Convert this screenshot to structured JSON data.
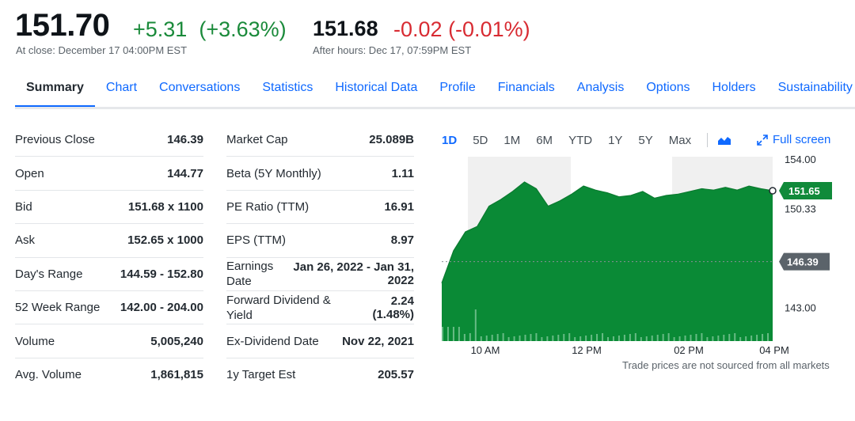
{
  "quote": {
    "price": "151.70",
    "change": "+5.31",
    "change_pct": "(+3.63%)",
    "close_note": "At close: December 17 04:00PM EST",
    "after_hours_price": "151.68",
    "after_hours_change": "-0.02",
    "after_hours_change_pct": "(-0.01%)",
    "after_hours_note": "After hours: Dec 17, 07:59PM EST"
  },
  "tabs": [
    {
      "label": "Summary",
      "active": true
    },
    {
      "label": "Chart"
    },
    {
      "label": "Conversations"
    },
    {
      "label": "Statistics"
    },
    {
      "label": "Historical Data"
    },
    {
      "label": "Profile"
    },
    {
      "label": "Financials"
    },
    {
      "label": "Analysis"
    },
    {
      "label": "Options"
    },
    {
      "label": "Holders"
    },
    {
      "label": "Sustainability"
    }
  ],
  "stats_left": [
    {
      "label": "Previous Close",
      "value": "146.39"
    },
    {
      "label": "Open",
      "value": "144.77"
    },
    {
      "label": "Bid",
      "value": "151.68 x 1100"
    },
    {
      "label": "Ask",
      "value": "152.65 x 1000"
    },
    {
      "label": "Day's Range",
      "value": "144.59 - 152.80"
    },
    {
      "label": "52 Week Range",
      "value": "142.00 - 204.00"
    },
    {
      "label": "Volume",
      "value": "5,005,240"
    },
    {
      "label": "Avg. Volume",
      "value": "1,861,815"
    }
  ],
  "stats_right": [
    {
      "label": "Market Cap",
      "value": "25.089B"
    },
    {
      "label": "Beta (5Y Monthly)",
      "value": "1.11"
    },
    {
      "label": "PE Ratio (TTM)",
      "value": "16.91"
    },
    {
      "label": "EPS (TTM)",
      "value": "8.97"
    },
    {
      "label": "Earnings Date",
      "value": "Jan 26, 2022 - Jan 31, 2022"
    },
    {
      "label": "Forward Dividend & Yield",
      "value": "2.24 (1.48%)"
    },
    {
      "label": "Ex-Dividend Date",
      "value": "Nov 22, 2021"
    },
    {
      "label": "1y Target Est",
      "value": "205.57"
    }
  ],
  "chart": {
    "ranges": [
      {
        "label": "1D",
        "active": true
      },
      {
        "label": "5D"
      },
      {
        "label": "1M"
      },
      {
        "label": "6M"
      },
      {
        "label": "YTD"
      },
      {
        "label": "1Y"
      },
      {
        "label": "5Y"
      },
      {
        "label": "Max"
      }
    ],
    "chart_type_icon": "area-chart-icon",
    "fullscreen_label": "Full screen",
    "fullscreen_icon": "expand-icon",
    "note": "Trade prices are not sourced from all markets",
    "colors": {
      "area": "#0a8a36",
      "line": "#0a7a2f",
      "current_badge": "#108a3a",
      "prev_badge": "#5b636a",
      "shade": "#f0f0f0"
    }
  },
  "chart_data": {
    "type": "area",
    "x_ticks": [
      "10 AM",
      "12 PM",
      "02 PM",
      "04 PM"
    ],
    "y_ticks": [
      "154.00",
      "150.33",
      "146.39",
      "143.00"
    ],
    "ylim": [
      140.5,
      154.0
    ],
    "current_price_label": "151.65",
    "previous_close_label": "146.39",
    "x": [
      "09:30",
      "09:35",
      "09:45",
      "10:00",
      "10:15",
      "10:30",
      "10:45",
      "11:00",
      "11:10",
      "11:20",
      "11:30",
      "11:45",
      "12:00",
      "12:15",
      "12:30",
      "12:45",
      "13:00",
      "13:15",
      "13:30",
      "13:45",
      "14:00",
      "14:15",
      "14:30",
      "14:45",
      "15:00",
      "15:15",
      "15:30",
      "15:45",
      "16:00"
    ],
    "values": [
      144.8,
      147.2,
      148.6,
      149.0,
      150.5,
      151.0,
      151.6,
      152.3,
      151.8,
      150.5,
      150.9,
      151.4,
      152.0,
      151.7,
      151.5,
      151.2,
      151.3,
      151.6,
      151.1,
      151.3,
      151.4,
      151.6,
      151.8,
      151.7,
      151.9,
      151.7,
      152.0,
      151.8,
      151.65
    ]
  }
}
